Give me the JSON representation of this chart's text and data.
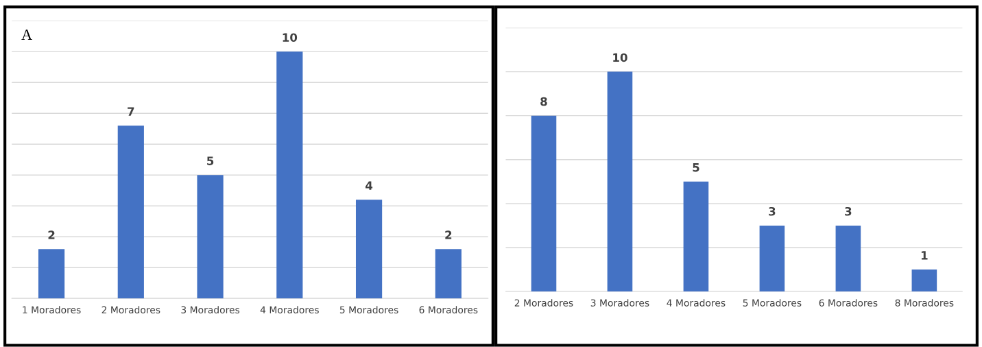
{
  "chart_data": [
    {
      "type": "bar",
      "annotations": [
        "A"
      ],
      "categories": [
        "1 Moradores",
        "2 Moradores",
        "3 Moradores",
        "4 Moradores",
        "5 Moradores",
        "6 Moradores"
      ],
      "values": [
        2,
        7,
        5,
        10,
        4,
        2
      ],
      "color": "#4472c4",
      "data_labels": true,
      "grid": "y",
      "tick_labels": "x",
      "ylim": [
        0,
        11.25
      ],
      "yticks": [
        {
          "value": 0,
          "label": null
        },
        {
          "value": 1.25,
          "label": null
        },
        {
          "value": 2.5,
          "label": null
        },
        {
          "value": 3.75,
          "label": null
        },
        {
          "value": 5,
          "label": null
        },
        {
          "value": 6.25,
          "label": null
        },
        {
          "value": 7.5,
          "label": null
        },
        {
          "value": 8.75,
          "label": null
        },
        {
          "value": 10,
          "label": null
        },
        {
          "value": 11.25,
          "label": null
        }
      ]
    },
    {
      "type": "bar",
      "categories": [
        "2 Moradores",
        "3 Moradores",
        "4 Moradores",
        "5 Moradores",
        "6 Moradores",
        "8 Moradores"
      ],
      "values": [
        8,
        10,
        5,
        3,
        3,
        1
      ],
      "color": "#4472c4",
      "data_labels": true,
      "grid": "y",
      "tick_labels": "x",
      "ylim": [
        0,
        12
      ],
      "yticks": [
        {
          "value": 0,
          "label": null
        },
        {
          "value": 2,
          "label": null
        },
        {
          "value": 4,
          "label": null
        },
        {
          "value": 6,
          "label": null
        },
        {
          "value": 8,
          "label": null
        },
        {
          "value": 10,
          "label": null
        },
        {
          "value": 12,
          "label": null
        }
      ]
    }
  ]
}
